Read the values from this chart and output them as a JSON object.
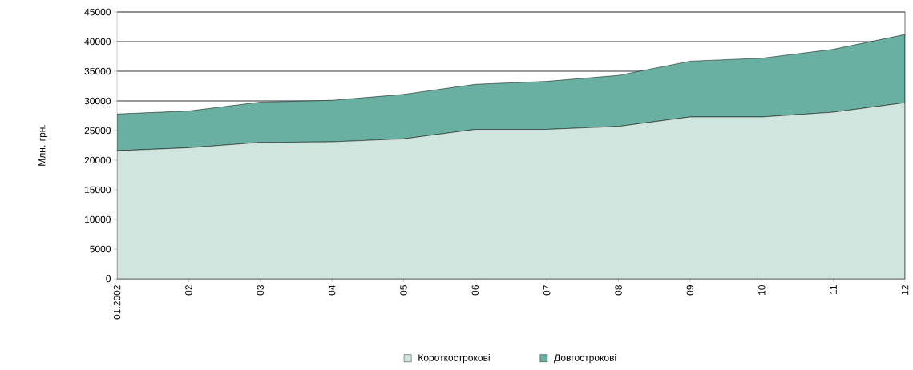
{
  "chart_data": {
    "type": "area",
    "stacked": true,
    "ylabel": "Млн. грн.",
    "categories": [
      "01.2002",
      "02",
      "03",
      "04",
      "05",
      "06",
      "07",
      "08",
      "09",
      "10",
      "11",
      "12"
    ],
    "series": [
      {
        "name": "Короткострокові",
        "color": "#cfe5de",
        "values": [
          21600,
          22100,
          23000,
          23100,
          23600,
          25200,
          25200,
          25700,
          27300,
          27300,
          28100,
          29700
        ]
      },
      {
        "name": "Довгострокові",
        "color": "#69b0a2",
        "values": [
          6200,
          6200,
          6800,
          7000,
          7500,
          7600,
          8100,
          8600,
          9400,
          9900,
          10600,
          11500
        ]
      }
    ],
    "ylim": [
      0,
      45000
    ],
    "yticks": [
      0,
      5000,
      10000,
      15000,
      20000,
      25000,
      30000,
      35000,
      40000,
      45000
    ],
    "grid": "y",
    "legend": "bottom"
  }
}
